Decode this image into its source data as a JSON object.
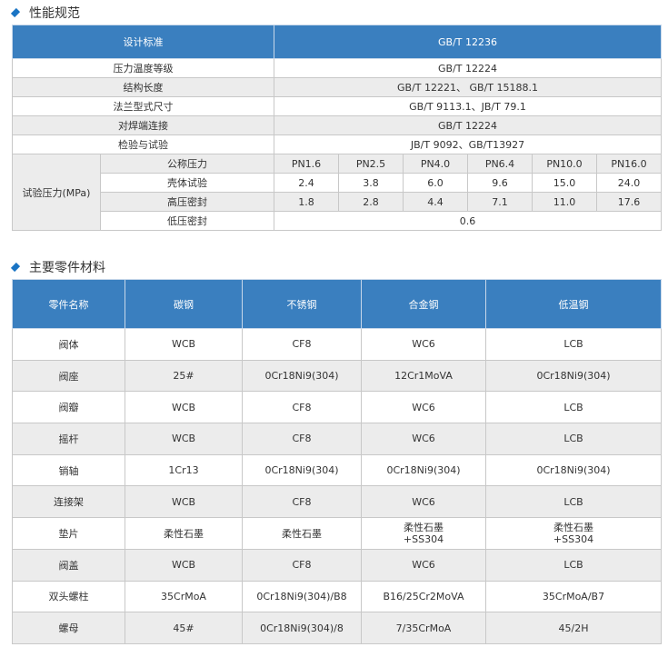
{
  "spec": {
    "title": "性能规范",
    "header": [
      "设计标准",
      "GB/T 12236"
    ],
    "rows": [
      [
        "压力温度等级",
        "GB/T 12224"
      ],
      [
        "结构长度",
        "GB/T 12221、 GB/T 15188.1"
      ],
      [
        "法兰型式尺寸",
        "GB/T 9113.1、JB/T 79.1"
      ],
      [
        "对焊端连接",
        "GB/T 12224"
      ],
      [
        "检验与试验",
        "JB/T 9092、GB/T13927"
      ]
    ],
    "test_label": "试验压力(MPa)",
    "test_rows": [
      {
        "label": "公称压力",
        "values": [
          "PN1.6",
          "PN2.5",
          "PN4.0",
          "PN6.4",
          "PN10.0",
          "PN16.0"
        ]
      },
      {
        "label": "壳体试验",
        "values": [
          "2.4",
          "3.8",
          "6.0",
          "9.6",
          "15.0",
          "24.0"
        ]
      },
      {
        "label": "高压密封",
        "values": [
          "1.8",
          "2.8",
          "4.4",
          "7.1",
          "11.0",
          "17.6"
        ]
      }
    ],
    "low_seal": {
      "label": "低压密封",
      "value": "0.6"
    }
  },
  "materials": {
    "title": "主要零件材料",
    "headers": [
      "零件名称",
      "碳钢",
      "不锈钢",
      "合金钢",
      "低温钢"
    ],
    "rows": [
      [
        "阀体",
        "WCB",
        "CF8",
        "WC6",
        "LCB"
      ],
      [
        "阀座",
        "25#",
        "0Cr18Ni9(304)",
        "12Cr1MoVA",
        "0Cr18Ni9(304)"
      ],
      [
        "阀瓣",
        "WCB",
        "CF8",
        "WC6",
        "LCB"
      ],
      [
        "摇杆",
        "WCB",
        "CF8",
        "WC6",
        "LCB"
      ],
      [
        "销轴",
        "1Cr13",
        "0Cr18Ni9(304)",
        "0Cr18Ni9(304)",
        "0Cr18Ni9(304)"
      ],
      [
        "连接架",
        "WCB",
        "CF8",
        "WC6",
        "LCB"
      ],
      [
        "垫片",
        "柔性石墨",
        "柔性石墨",
        "柔性石墨\n+SS304",
        "柔性石墨\n+SS304"
      ],
      [
        "阀盖",
        "WCB",
        "CF8",
        "WC6",
        "LCB"
      ],
      [
        "双头螺柱",
        "35CrMoA",
        "0Cr18Ni9(304)/B8",
        "B16/25Cr2MoVA",
        "35CrMoA/B7"
      ],
      [
        "螺母",
        "45#",
        "0Cr18Ni9(304)/8",
        "7/35CrMoA",
        "45/2H"
      ]
    ]
  },
  "colors": {
    "header": "#3a7fbf",
    "alt_row": "#ececec",
    "bullet": "#1a74c4"
  }
}
